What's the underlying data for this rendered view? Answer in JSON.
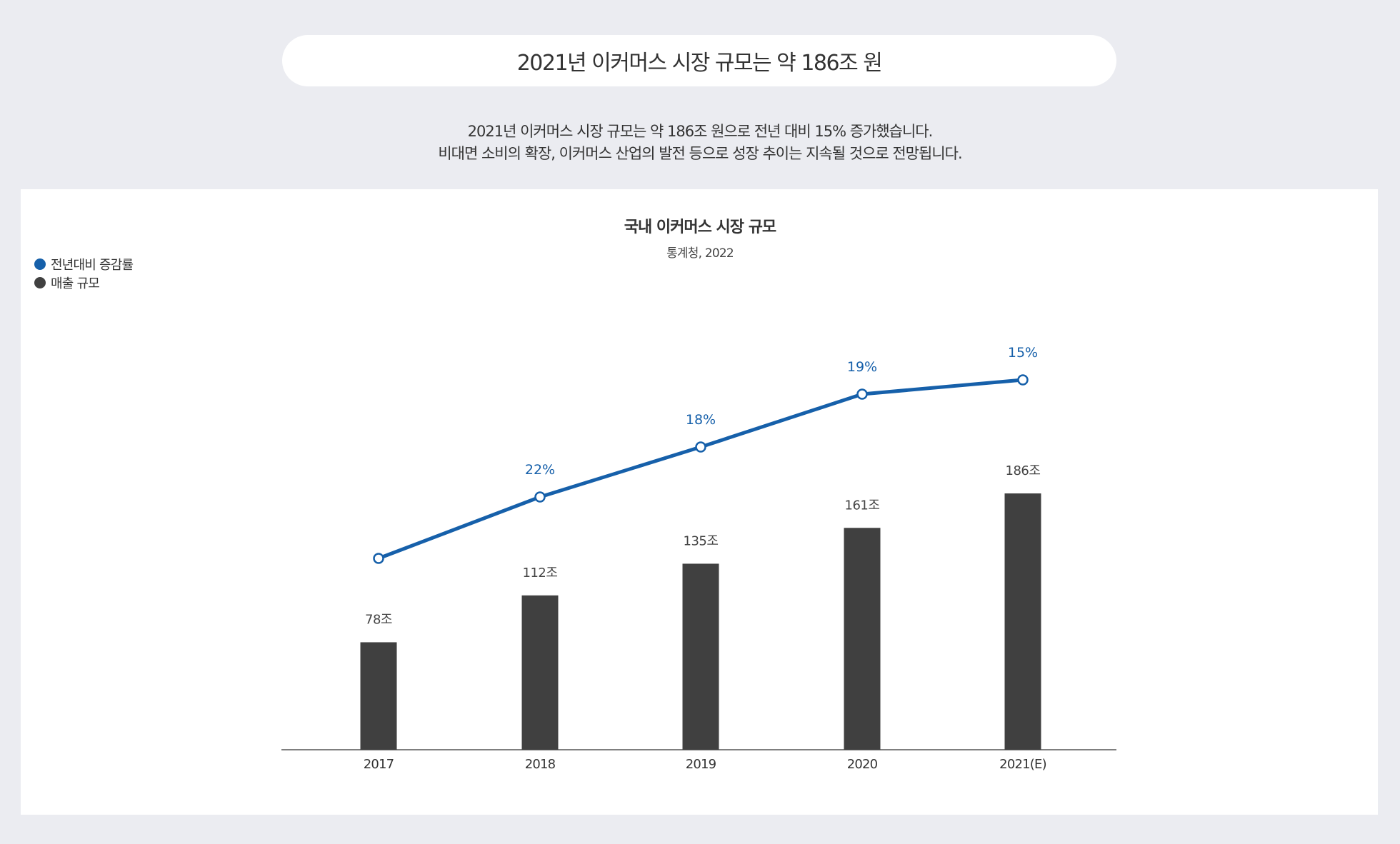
{
  "header": {
    "title": "2021년 이커머스 시장 규모는 약 186조 원"
  },
  "description": [
    "2021년 이커머스 시장 규모는 약 186조 원으로 전년 대비 15% 증가했습니다.",
    "비대면 소비의 확장, 이커머스 산업의 발전 등으로 성장 추이는 지속될 것으로 전망됩니다."
  ],
  "chart_data": {
    "type": "bar+line",
    "title": "국내 이커머스 시장 규모",
    "subtitle": "통계청, 2022",
    "categories": [
      "2017",
      "2018",
      "2019",
      "2020",
      "2021(E)"
    ],
    "legend_position": "top-left",
    "grid": false,
    "series": [
      {
        "name": "전년대비 증감률",
        "type": "line",
        "color": "#1660aa",
        "values": [
          null,
          22,
          18,
          19,
          15
        ],
        "labels": [
          "",
          "22%",
          "18%",
          "19%",
          "15%"
        ]
      },
      {
        "name": "매출 규모",
        "type": "bar",
        "color": "#404040",
        "values": [
          78,
          112,
          135,
          161,
          186
        ],
        "labels": [
          "78조",
          "112조",
          "135조",
          "161조",
          "186조"
        ]
      }
    ]
  }
}
